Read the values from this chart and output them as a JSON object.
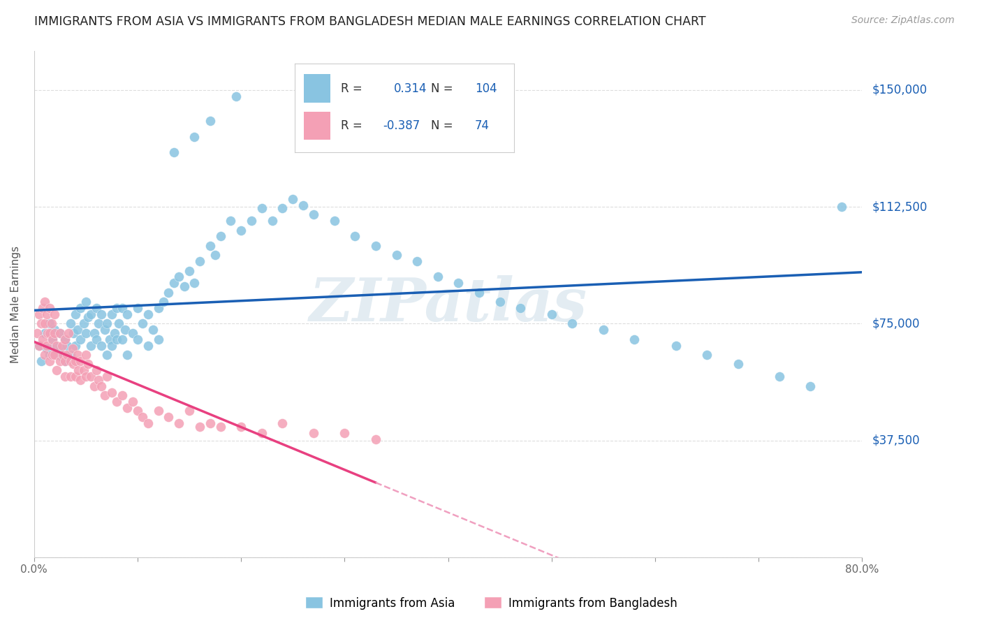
{
  "title": "IMMIGRANTS FROM ASIA VS IMMIGRANTS FROM BANGLADESH MEDIAN MALE EARNINGS CORRELATION CHART",
  "source": "Source: ZipAtlas.com",
  "ylabel": "Median Male Earnings",
  "xlim": [
    0.0,
    0.8
  ],
  "ylim": [
    0,
    162500
  ],
  "yticks": [
    0,
    37500,
    75000,
    112500,
    150000
  ],
  "ytick_labels": [
    "",
    "$37,500",
    "$75,000",
    "$112,500",
    "$150,000"
  ],
  "xticks": [
    0.0,
    0.1,
    0.2,
    0.3,
    0.4,
    0.5,
    0.6,
    0.7,
    0.8
  ],
  "xtick_labels": [
    "0.0%",
    "",
    "",
    "",
    "",
    "",
    "",
    "",
    "80.0%"
  ],
  "blue_color": "#89c4e1",
  "pink_color": "#f4a0b5",
  "blue_line_color": "#1a5fb4",
  "pink_line_color": "#e84080",
  "pink_dash_color": "#f0a0c0",
  "r_blue": "0.314",
  "n_blue": "104",
  "r_pink": "-0.387",
  "n_pink": "74",
  "watermark": "ZIPatlas",
  "legend_label_blue": "Immigrants from Asia",
  "legend_label_pink": "Immigrants from Bangladesh",
  "blue_scatter_x": [
    0.005,
    0.007,
    0.01,
    0.012,
    0.015,
    0.015,
    0.018,
    0.02,
    0.02,
    0.022,
    0.025,
    0.025,
    0.028,
    0.03,
    0.03,
    0.032,
    0.035,
    0.035,
    0.038,
    0.04,
    0.04,
    0.042,
    0.045,
    0.045,
    0.048,
    0.05,
    0.05,
    0.052,
    0.055,
    0.055,
    0.058,
    0.06,
    0.06,
    0.062,
    0.065,
    0.065,
    0.068,
    0.07,
    0.07,
    0.073,
    0.075,
    0.075,
    0.078,
    0.08,
    0.08,
    0.082,
    0.085,
    0.085,
    0.088,
    0.09,
    0.09,
    0.095,
    0.1,
    0.1,
    0.105,
    0.11,
    0.11,
    0.115,
    0.12,
    0.12,
    0.125,
    0.13,
    0.135,
    0.14,
    0.145,
    0.15,
    0.155,
    0.16,
    0.17,
    0.175,
    0.18,
    0.19,
    0.2,
    0.21,
    0.22,
    0.23,
    0.24,
    0.25,
    0.26,
    0.27,
    0.29,
    0.31,
    0.33,
    0.35,
    0.37,
    0.39,
    0.41,
    0.43,
    0.45,
    0.47,
    0.5,
    0.52,
    0.55,
    0.58,
    0.62,
    0.65,
    0.68,
    0.72,
    0.75,
    0.78,
    0.135,
    0.155,
    0.17,
    0.195
  ],
  "blue_scatter_y": [
    68000,
    63000,
    72000,
    67000,
    75000,
    65000,
    70000,
    68000,
    73000,
    65000,
    72000,
    67000,
    64000,
    70000,
    63000,
    68000,
    75000,
    65000,
    72000,
    78000,
    68000,
    73000,
    80000,
    70000,
    75000,
    82000,
    72000,
    77000,
    78000,
    68000,
    72000,
    80000,
    70000,
    75000,
    78000,
    68000,
    73000,
    75000,
    65000,
    70000,
    78000,
    68000,
    72000,
    80000,
    70000,
    75000,
    80000,
    70000,
    73000,
    78000,
    65000,
    72000,
    80000,
    70000,
    75000,
    78000,
    68000,
    73000,
    80000,
    70000,
    82000,
    85000,
    88000,
    90000,
    87000,
    92000,
    88000,
    95000,
    100000,
    97000,
    103000,
    108000,
    105000,
    108000,
    112000,
    108000,
    112000,
    115000,
    113000,
    110000,
    108000,
    103000,
    100000,
    97000,
    95000,
    90000,
    88000,
    85000,
    82000,
    80000,
    78000,
    75000,
    73000,
    70000,
    68000,
    65000,
    62000,
    58000,
    55000,
    112500,
    130000,
    135000,
    140000,
    148000
  ],
  "pink_scatter_x": [
    0.003,
    0.005,
    0.005,
    0.007,
    0.008,
    0.008,
    0.01,
    0.01,
    0.01,
    0.012,
    0.012,
    0.013,
    0.015,
    0.015,
    0.015,
    0.017,
    0.018,
    0.018,
    0.02,
    0.02,
    0.02,
    0.022,
    0.022,
    0.025,
    0.025,
    0.027,
    0.028,
    0.03,
    0.03,
    0.03,
    0.032,
    0.033,
    0.035,
    0.035,
    0.037,
    0.038,
    0.04,
    0.04,
    0.042,
    0.043,
    0.045,
    0.045,
    0.048,
    0.05,
    0.05,
    0.052,
    0.055,
    0.058,
    0.06,
    0.062,
    0.065,
    0.068,
    0.07,
    0.075,
    0.08,
    0.085,
    0.09,
    0.095,
    0.1,
    0.105,
    0.11,
    0.12,
    0.13,
    0.14,
    0.15,
    0.16,
    0.17,
    0.18,
    0.2,
    0.22,
    0.24,
    0.27,
    0.3,
    0.33
  ],
  "pink_scatter_y": [
    72000,
    78000,
    68000,
    75000,
    80000,
    70000,
    82000,
    75000,
    65000,
    78000,
    68000,
    72000,
    80000,
    72000,
    63000,
    75000,
    70000,
    65000,
    72000,
    65000,
    78000,
    68000,
    60000,
    72000,
    63000,
    68000,
    65000,
    70000,
    63000,
    58000,
    65000,
    72000,
    63000,
    58000,
    67000,
    62000,
    63000,
    58000,
    65000,
    60000,
    63000,
    57000,
    60000,
    65000,
    58000,
    62000,
    58000,
    55000,
    60000,
    57000,
    55000,
    52000,
    58000,
    53000,
    50000,
    52000,
    48000,
    50000,
    47000,
    45000,
    43000,
    47000,
    45000,
    43000,
    47000,
    42000,
    43000,
    42000,
    42000,
    40000,
    43000,
    40000,
    40000,
    38000
  ]
}
